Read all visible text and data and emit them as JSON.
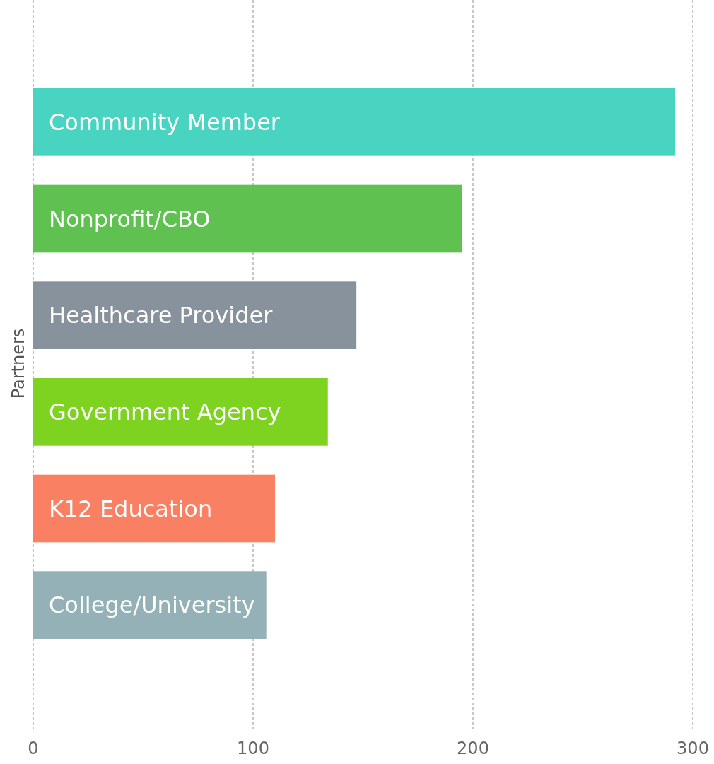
{
  "chart_data": {
    "type": "bar",
    "orientation": "horizontal",
    "ylabel": "Partners",
    "categories": [
      "Community Member",
      "Nonprofit/CBO",
      "Healthcare Provider",
      "Government Agency",
      "K12 Education",
      "College/University"
    ],
    "values": [
      292,
      195,
      147,
      134,
      110,
      106
    ],
    "colors": [
      "#48d4c0",
      "#5fc150",
      "#87929c",
      "#7ed321",
      "#fa8064",
      "#93b1b6"
    ],
    "xlim": [
      0,
      300
    ],
    "xticks": [
      0,
      100,
      200,
      300
    ],
    "grid": "x"
  }
}
